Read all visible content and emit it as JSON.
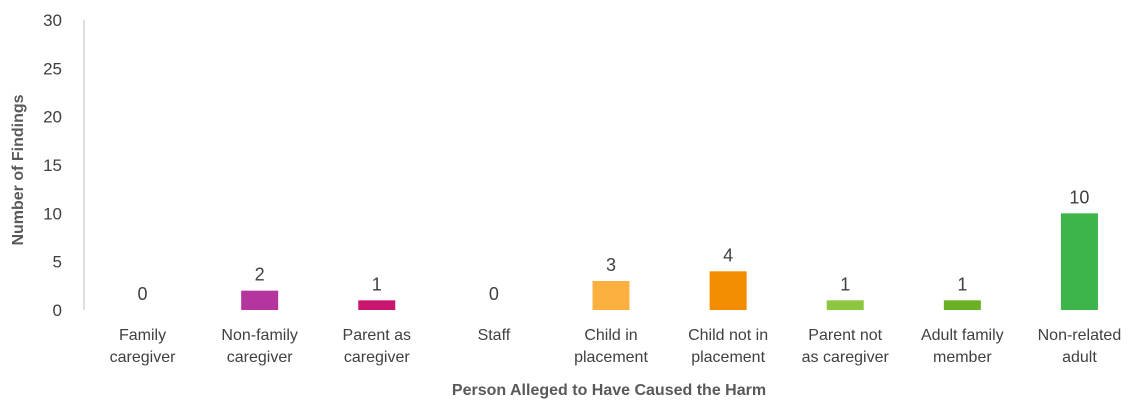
{
  "chart_data": {
    "type": "bar",
    "title": "",
    "xlabel": "Person Alleged to Have Caused the Harm",
    "ylabel": "Number of Findings",
    "ylim": [
      0,
      30
    ],
    "yticks": [
      0,
      5,
      10,
      15,
      20,
      25,
      30
    ],
    "grid": false,
    "categories": [
      [
        "Family",
        "caregiver"
      ],
      [
        "Non-family",
        "caregiver"
      ],
      [
        "Parent as",
        "caregiver"
      ],
      [
        "Staff"
      ],
      [
        "Child in",
        "placement"
      ],
      [
        "Child not in",
        "placement"
      ],
      [
        "Parent not",
        "as caregiver"
      ],
      [
        "Adult family",
        "member"
      ],
      [
        "Non-related",
        "adult"
      ]
    ],
    "values": [
      0,
      2,
      1,
      0,
      3,
      4,
      1,
      1,
      10
    ],
    "colors": [
      "#A63E97",
      "#B5359E",
      "#C8166E",
      "#C8166E",
      "#FBB040",
      "#F28C00",
      "#8DC63F",
      "#6AB023",
      "#3DB54A"
    ]
  }
}
